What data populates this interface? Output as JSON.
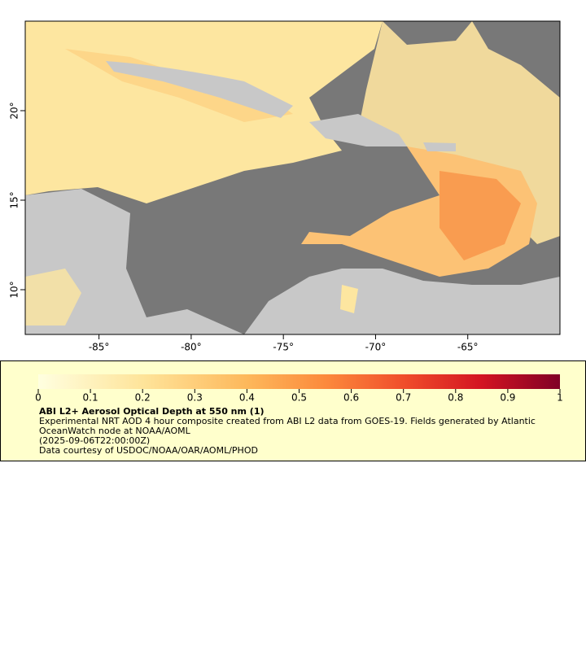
{
  "map": {
    "xlim": [
      -89,
      -60
    ],
    "ylim": [
      7.5,
      25
    ],
    "xticks": [
      {
        "value": -85,
        "label": "-85°"
      },
      {
        "value": -80,
        "label": "-80°"
      },
      {
        "value": -75,
        "label": "-75°"
      },
      {
        "value": -70,
        "label": "-70°"
      },
      {
        "value": -65,
        "label": "-65°"
      }
    ],
    "yticks": [
      {
        "value": 10,
        "label": "10°"
      },
      {
        "value": 15,
        "label": "15°"
      },
      {
        "value": 20,
        "label": "20°"
      }
    ]
  },
  "colorbar": {
    "lim": [
      0,
      1
    ],
    "ticks": [
      0,
      0.1,
      0.2,
      0.3,
      0.4,
      0.5,
      0.6,
      0.7,
      0.8,
      0.9,
      1
    ]
  },
  "legend": {
    "title": "ABI L2+ Aerosol Optical Depth at 550 nm (1)",
    "description": "Experimental NRT AOD 4 hour composite created from ABI L2 data from GOES-19. Fields generated by Atlantic OceanWatch node at NOAA/AOML",
    "time": "(2025-09-06T22:00:00Z)",
    "credit": "Data courtesy of USDOC/NOAA/OAR/AOML/PHOD"
  }
}
